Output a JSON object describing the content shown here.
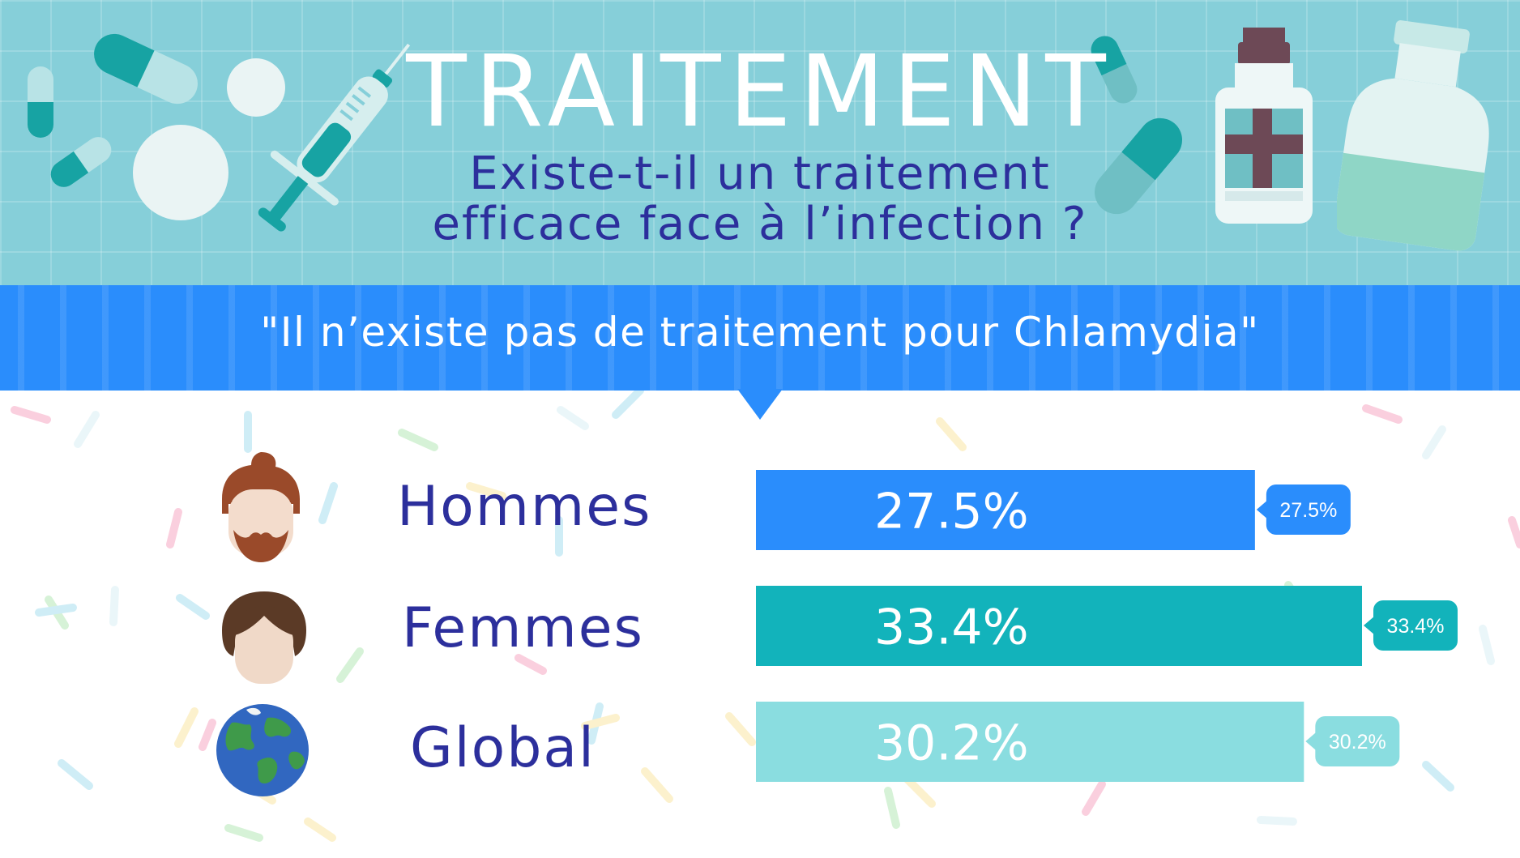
{
  "header": {
    "title": "TRAITEMENT",
    "subtitle_line1": "Existe-t-il un traitement",
    "subtitle_line2": "efficace face à l’infection ?"
  },
  "banner": {
    "quote": "\"Il n’existe pas de traitement pour Chlamydia\""
  },
  "rows": [
    {
      "label": "Hommes",
      "icon": "man-avatar-icon"
    },
    {
      "label": "Femmes",
      "icon": "woman-avatar-icon"
    },
    {
      "label": "Global",
      "icon": "globe-icon"
    }
  ],
  "colors": {
    "header_bg": "#86cfd9",
    "title": "#ffffff",
    "subtitle": "#2c2f9c",
    "banner": "#2a8dfc",
    "label": "#2c2f9c",
    "hommes": "#2a8dfc",
    "femmes": "#12b3bb",
    "global": "#8adde0"
  },
  "chart_data": {
    "type": "bar",
    "orientation": "horizontal",
    "categories": [
      "Hommes",
      "Femmes",
      "Global"
    ],
    "values": [
      27.5,
      33.4,
      30.2
    ],
    "value_labels": [
      "27.5%",
      "33.4%",
      "30.2%"
    ],
    "unit": "%",
    "xlim": [
      0,
      33.4
    ],
    "grid": false,
    "legend": "none"
  }
}
